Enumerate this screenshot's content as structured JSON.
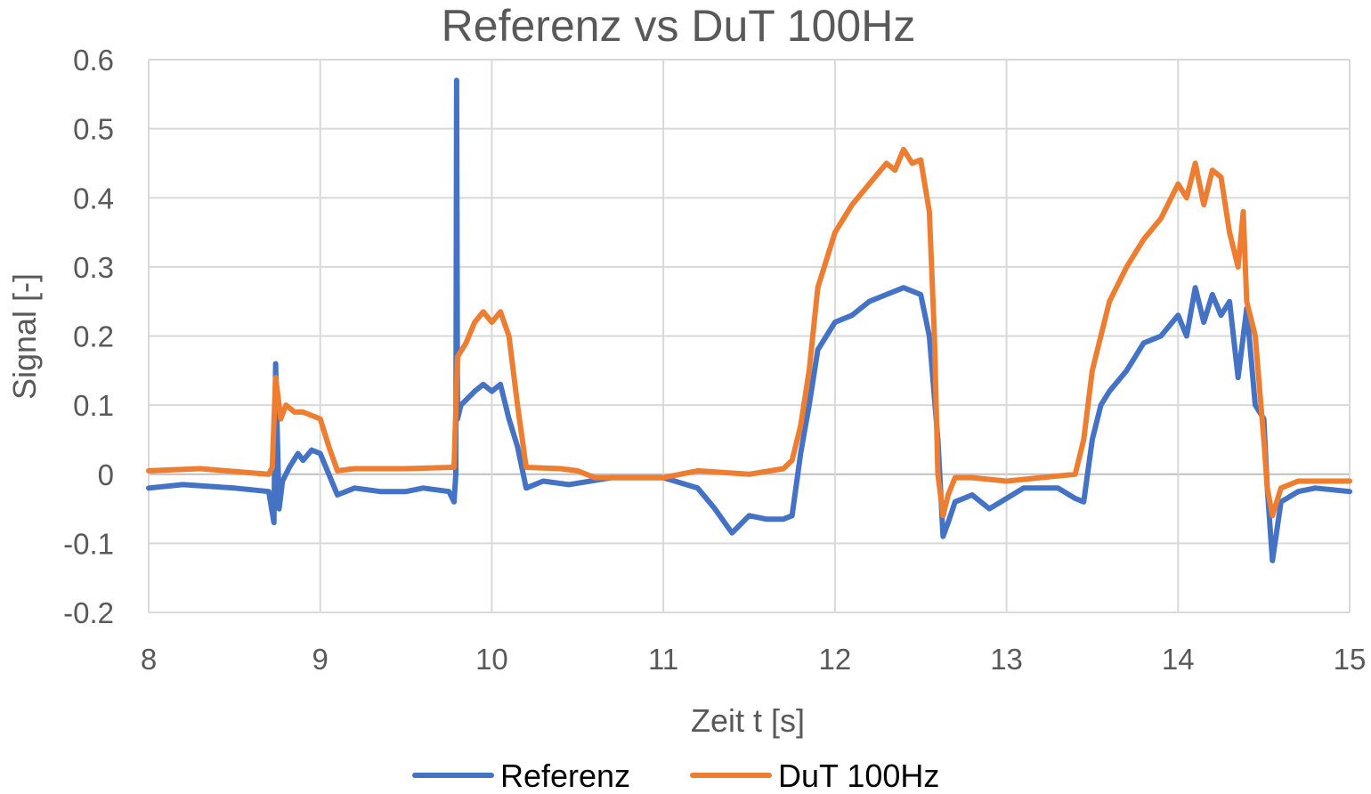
{
  "chart_data": {
    "type": "line",
    "title": "Referenz vs DuT 100Hz",
    "xlabel": "Zeit t [s]",
    "ylabel": "Signal [-]",
    "xlim": [
      8,
      15
    ],
    "ylim": [
      -0.2,
      0.6
    ],
    "x_ticks": [
      "8",
      "9",
      "10",
      "11",
      "12",
      "13",
      "14",
      "15"
    ],
    "y_ticks": [
      "0.6",
      "0.5",
      "0.4",
      "0.3",
      "0.2",
      "0.1",
      "0",
      "-0.1",
      "-0.2"
    ],
    "grid": true,
    "legend_position": "bottom",
    "series": [
      {
        "name": "Referenz",
        "color": "#4472C4",
        "x": [
          8.0,
          8.2,
          8.5,
          8.7,
          8.73,
          8.74,
          8.76,
          8.78,
          8.82,
          8.87,
          8.9,
          8.95,
          9.0,
          9.05,
          9.1,
          9.2,
          9.35,
          9.5,
          9.6,
          9.75,
          9.78,
          9.79,
          9.795,
          9.8,
          9.82,
          9.9,
          9.95,
          10.0,
          10.05,
          10.1,
          10.15,
          10.2,
          10.3,
          10.45,
          10.7,
          11.0,
          11.2,
          11.3,
          11.4,
          11.5,
          11.6,
          11.7,
          11.75,
          11.8,
          11.85,
          11.9,
          12.0,
          12.1,
          12.2,
          12.3,
          12.4,
          12.5,
          12.55,
          12.6,
          12.63,
          12.66,
          12.7,
          12.8,
          12.9,
          13.0,
          13.1,
          13.3,
          13.4,
          13.45,
          13.5,
          13.55,
          13.6,
          13.7,
          13.8,
          13.9,
          14.0,
          14.05,
          14.1,
          14.15,
          14.2,
          14.25,
          14.3,
          14.35,
          14.4,
          14.45,
          14.5,
          14.52,
          14.55,
          14.6,
          14.7,
          14.8,
          15.0
        ],
        "y": [
          -0.02,
          -0.015,
          -0.02,
          -0.025,
          -0.07,
          0.16,
          -0.05,
          -0.01,
          0.01,
          0.03,
          0.02,
          0.035,
          0.03,
          0.0,
          -0.03,
          -0.02,
          -0.025,
          -0.025,
          -0.02,
          -0.025,
          -0.04,
          0.0,
          0.57,
          0.08,
          0.1,
          0.12,
          0.13,
          0.12,
          0.13,
          0.08,
          0.04,
          -0.02,
          -0.01,
          -0.015,
          -0.005,
          -0.005,
          -0.02,
          -0.05,
          -0.085,
          -0.06,
          -0.065,
          -0.065,
          -0.06,
          0.03,
          0.1,
          0.18,
          0.22,
          0.23,
          0.25,
          0.26,
          0.27,
          0.26,
          0.2,
          0.05,
          -0.09,
          -0.07,
          -0.04,
          -0.03,
          -0.05,
          -0.035,
          -0.02,
          -0.02,
          -0.035,
          -0.04,
          0.05,
          0.1,
          0.12,
          0.15,
          0.19,
          0.2,
          0.23,
          0.2,
          0.27,
          0.22,
          0.26,
          0.23,
          0.25,
          0.14,
          0.24,
          0.1,
          0.08,
          -0.02,
          -0.125,
          -0.04,
          -0.025,
          -0.02,
          -0.025
        ]
      },
      {
        "name": "DuT 100Hz",
        "color": "#ED7D31",
        "x": [
          8.0,
          8.3,
          8.6,
          8.7,
          8.72,
          8.74,
          8.77,
          8.8,
          8.85,
          8.9,
          9.0,
          9.05,
          9.1,
          9.2,
          9.5,
          9.78,
          9.8,
          9.85,
          9.9,
          9.95,
          10.0,
          10.05,
          10.1,
          10.15,
          10.2,
          10.4,
          10.5,
          10.6,
          11.0,
          11.2,
          11.5,
          11.7,
          11.75,
          11.8,
          11.85,
          11.9,
          12.0,
          12.1,
          12.2,
          12.3,
          12.35,
          12.4,
          12.45,
          12.5,
          12.55,
          12.58,
          12.6,
          12.63,
          12.66,
          12.7,
          12.8,
          13.0,
          13.2,
          13.4,
          13.45,
          13.5,
          13.6,
          13.7,
          13.8,
          13.9,
          14.0,
          14.05,
          14.1,
          14.15,
          14.2,
          14.25,
          14.3,
          14.35,
          14.38,
          14.4,
          14.45,
          14.5,
          14.52,
          14.55,
          14.6,
          14.7,
          14.8,
          15.0
        ],
        "y": [
          0.005,
          0.008,
          0.002,
          0.0,
          0.01,
          0.14,
          0.08,
          0.1,
          0.09,
          0.09,
          0.08,
          0.04,
          0.005,
          0.008,
          0.008,
          0.01,
          0.17,
          0.19,
          0.22,
          0.235,
          0.22,
          0.235,
          0.2,
          0.1,
          0.01,
          0.008,
          0.005,
          -0.005,
          -0.005,
          0.005,
          0.0,
          0.008,
          0.02,
          0.07,
          0.15,
          0.27,
          0.35,
          0.39,
          0.42,
          0.45,
          0.44,
          0.47,
          0.45,
          0.455,
          0.38,
          0.2,
          0.0,
          -0.06,
          -0.03,
          -0.005,
          -0.005,
          -0.01,
          -0.005,
          0.0,
          0.05,
          0.15,
          0.25,
          0.3,
          0.34,
          0.37,
          0.42,
          0.4,
          0.45,
          0.39,
          0.44,
          0.43,
          0.35,
          0.3,
          0.38,
          0.25,
          0.2,
          0.05,
          -0.02,
          -0.06,
          -0.02,
          -0.01,
          -0.01,
          -0.01
        ]
      }
    ]
  }
}
